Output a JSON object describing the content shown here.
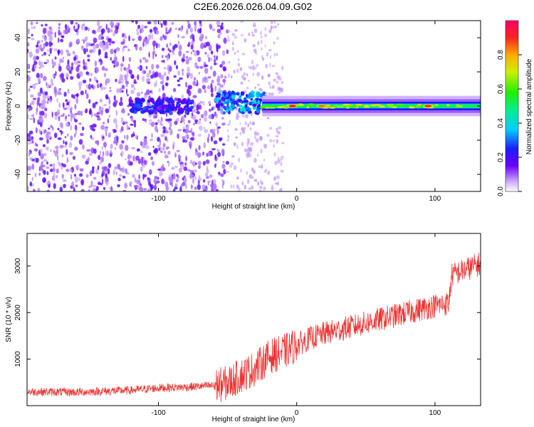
{
  "title": "C2E6.2026.026.04.09.G02",
  "chart_data": [
    {
      "type": "heatmap",
      "xlabel": "Height of straight line (km)",
      "ylabel": "Frequency (Hz)",
      "xlim": [
        -195,
        133
      ],
      "ylim": [
        -50,
        50
      ],
      "xticks": [
        -100,
        0,
        100
      ],
      "yticks": [
        -40,
        -20,
        0,
        20,
        40
      ],
      "colorbar": {
        "label": "Normalized spectral amplitude",
        "range": [
          0,
          1
        ],
        "ticks": [
          0.0,
          0.2,
          0.4,
          0.6,
          0.8
        ],
        "tick_labels": [
          "0.0",
          "0.2",
          "0.4",
          "0.6",
          "0.8"
        ]
      },
      "features": [
        {
          "description": "broadband noise",
          "x_range": [
            -195,
            -50
          ],
          "f_range": [
            -50,
            50
          ],
          "amplitude": 0.1
        },
        {
          "description": "cluster",
          "x_range": [
            -120,
            -75
          ],
          "f_range": [
            -4,
            4
          ],
          "amplitude": 0.25
        },
        {
          "description": "cluster",
          "x_range": [
            -58,
            -22
          ],
          "f_range": [
            -4,
            8
          ],
          "amplitude": 0.35
        },
        {
          "description": "narrow band",
          "x_range": [
            -25,
            133
          ],
          "f_range": [
            -3,
            3
          ],
          "amplitude": 0.5
        },
        {
          "description": "peak",
          "x": -3,
          "f": 0,
          "amplitude": 0.95
        },
        {
          "description": "peak",
          "x": 18,
          "f": 0,
          "amplitude": 0.85
        },
        {
          "description": "peak",
          "x": 95,
          "f": 0,
          "amplitude": 0.9
        }
      ]
    },
    {
      "type": "line",
      "xlabel": "Height of straight line (km)",
      "ylabel": "SNR (10 * v/v)",
      "xlim": [
        -195,
        133
      ],
      "ylim": [
        0,
        3700
      ],
      "xticks": [
        -100,
        0,
        100
      ],
      "yticks": [
        1000,
        2000,
        3000
      ],
      "series": [
        {
          "name": "SNR",
          "color": "#ee3333",
          "x": [
            -195,
            -160,
            -120,
            -100,
            -80,
            -60,
            -50,
            -40,
            -30,
            -20,
            -10,
            0,
            10,
            20,
            40,
            60,
            80,
            100,
            110,
            112,
            120,
            133
          ],
          "values": [
            300,
            290,
            330,
            380,
            400,
            430,
            480,
            650,
            800,
            1050,
            1150,
            1300,
            1450,
            1550,
            1700,
            1850,
            2000,
            2150,
            2200,
            2800,
            2900,
            3050
          ]
        }
      ]
    }
  ]
}
